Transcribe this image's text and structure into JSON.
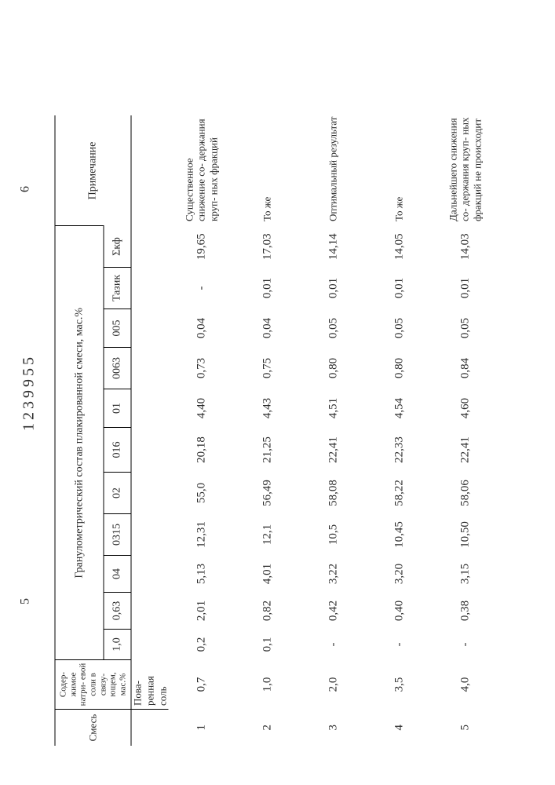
{
  "doc_number": "1239955",
  "page_marker_left": "5",
  "page_marker_right": "6",
  "headers": {
    "mix": "Смесь",
    "salt": "Содер- жимое натри- евой соли в связу- ющем, мас.%",
    "grain_group": "Гранулометрический состав плакированной смеси, мас.%",
    "note": "Примечание",
    "cols": {
      "c1": "1,0",
      "c2": "0,63",
      "c3": "04",
      "c4": "0315",
      "c5": "02",
      "c6": "016",
      "c7": "01",
      "c8": "0063",
      "c9": "005",
      "c10": "Тазик",
      "c11": "Σкф"
    },
    "extra": "Пова- ренная соль"
  },
  "rows": [
    {
      "n": "1",
      "salt": "0,7",
      "v": [
        "0,2",
        "2,01",
        "5,13",
        "12,31",
        "55,0",
        "20,18",
        "4,40",
        "0,73",
        "0,04",
        "-",
        "19,65"
      ],
      "note": "Существенное снижение со- держания круп- ных фракций"
    },
    {
      "n": "2",
      "salt": "1,0",
      "v": [
        "0,1",
        "0,82",
        "4,01",
        "12,1",
        "56,49",
        "21,25",
        "4,43",
        "0,75",
        "0,04",
        "0,01",
        "17,03"
      ],
      "note": "То же"
    },
    {
      "n": "3",
      "salt": "2,0",
      "v": [
        "-",
        "0,42",
        "3,22",
        "10,5",
        "58,08",
        "22,41",
        "4,51",
        "0,80",
        "0,05",
        "0,01",
        "14,14"
      ],
      "note": "Оптимальный результат"
    },
    {
      "n": "4",
      "salt": "3,5",
      "v": [
        "-",
        "0,40",
        "3,20",
        "10,45",
        "58,22",
        "22,33",
        "4,54",
        "0,80",
        "0,05",
        "0,01",
        "14,05"
      ],
      "note": "То же"
    },
    {
      "n": "5",
      "salt": "4,0",
      "v": [
        "-",
        "0,38",
        "3,15",
        "10,50",
        "58,06",
        "22,41",
        "4,60",
        "0,84",
        "0,05",
        "0,01",
        "14,03"
      ],
      "note": "Дальнейшего снижения со- держания круп- ных фракций не происходит"
    }
  ]
}
